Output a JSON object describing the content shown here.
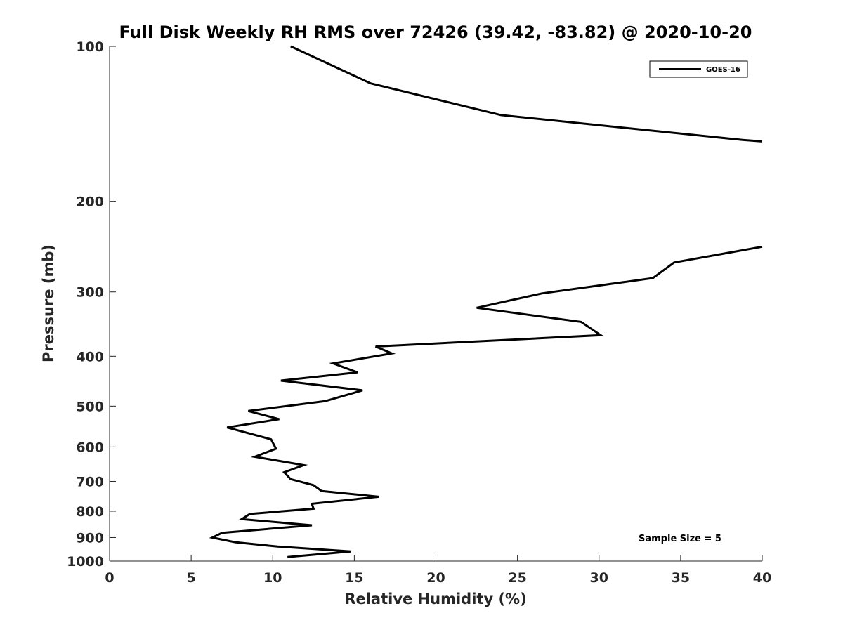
{
  "chart_data": {
    "type": "line",
    "title": "Full Disk Weekly RH RMS over 72426 (39.42, -83.82) @ 2020-10-20",
    "xlabel": "Relative Humidity (%)",
    "ylabel": "Pressure (mb)",
    "xlim": [
      0,
      40
    ],
    "ylim": [
      100,
      1000
    ],
    "y_scale": "log",
    "y_reversed": true,
    "grid": false,
    "legend_placement": "top-right",
    "x_ticks": [
      "0",
      "5",
      "10",
      "15",
      "20",
      "25",
      "30",
      "35",
      "40"
    ],
    "y_ticks": [
      "100",
      "200",
      "300",
      "400",
      "500",
      "600",
      "700",
      "800",
      "900",
      "1000"
    ],
    "annotation": "Sample Size = 5",
    "series": [
      {
        "name": "GOES-16",
        "color": "#000000",
        "segments": [
          {
            "x": [
              11.1,
              16.0,
              24.0,
              38.8,
              40.0
            ],
            "y": [
              100,
              118,
              136,
              152,
              153
            ]
          },
          {
            "x": [
              40.0,
              34.6,
              33.3,
              26.5,
              22.5,
              28.9,
              30.1,
              16.3,
              17.3,
              13.7,
              15.2,
              10.5,
              15.5,
              13.2,
              8.5,
              10.4,
              7.2,
              9.9,
              10.2,
              8.9,
              11.9,
              10.7,
              11.1,
              12.5,
              13.0,
              16.5,
              12.4,
              12.5,
              8.6,
              8.1,
              12.4,
              6.9,
              6.3,
              7.7,
              10.3,
              14.8,
              10.9
            ],
            "y": [
              245,
              263,
              282,
              302,
              322,
              343,
              364,
              383,
              395,
              413,
              430,
              446,
              466,
              489,
              511,
              530,
              550,
              580,
              605,
              627,
              651,
              672,
              693,
              712,
              731,
              750,
              774,
              791,
              810,
              829,
              852,
              881,
              900,
              919,
              937,
              958,
              982
            ]
          }
        ]
      }
    ]
  }
}
